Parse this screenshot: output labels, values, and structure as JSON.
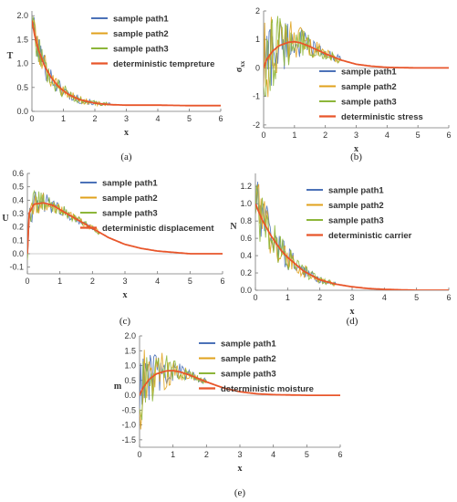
{
  "colors": {
    "path1": "#4C72B8",
    "path2": "#E0A21C",
    "path3": "#8DB63A",
    "deterministic": "#E8562B",
    "axis": "#777777",
    "zero_line": "#BBBBBB"
  },
  "chart_data": [
    {
      "type": "line",
      "panel": "(a)",
      "ylabel": "T",
      "xlabel": "x",
      "xlim": [
        0,
        6
      ],
      "ylim": [
        0,
        2.1
      ],
      "x_ticks": [
        "0",
        "1",
        "2",
        "3",
        "4",
        "5",
        "6"
      ],
      "y_ticks": [
        0.0,
        0.5,
        1.0,
        1.5,
        2.0
      ],
      "y_tick_labels": [
        "0.0",
        "0.5",
        "1.0",
        "1.5",
        "2.0"
      ],
      "deterministic": {
        "name": "deterministic tempreture",
        "x": [
          0,
          0.1,
          0.2,
          0.4,
          0.6,
          0.8,
          1.0,
          1.2,
          1.5,
          2.0,
          2.5,
          3.0,
          4.0,
          5.0,
          6.0
        ],
        "y": [
          1.9,
          1.55,
          1.3,
          0.95,
          0.72,
          0.55,
          0.43,
          0.34,
          0.25,
          0.17,
          0.14,
          0.13,
          0.13,
          0.12,
          0.12
        ]
      },
      "noise_amplitude": [
        0.35,
        0.04
      ],
      "noise_extent": 2.5,
      "series": [
        {
          "name": "sample path1"
        },
        {
          "name": "sample path2"
        },
        {
          "name": "sample path3"
        }
      ]
    },
    {
      "type": "line",
      "panel": "(b)",
      "ylabel": "σxx",
      "xlabel": "x",
      "xlim": [
        0,
        6
      ],
      "ylim": [
        -2.1,
        2.0
      ],
      "x_ticks": [
        "0",
        "1",
        "2",
        "3",
        "4",
        "5",
        "6"
      ],
      "y_ticks": [
        -2,
        -1,
        0,
        1,
        2
      ],
      "y_tick_labels": [
        "-2",
        "-1",
        "0",
        "1",
        "2"
      ],
      "deterministic": {
        "name": "deterministic stress",
        "x": [
          0,
          0.1,
          0.3,
          0.5,
          0.8,
          1.0,
          1.2,
          1.5,
          2.0,
          2.5,
          3.0,
          3.5,
          4.0,
          5.0,
          6.0
        ],
        "y": [
          0.0,
          0.3,
          0.6,
          0.78,
          0.9,
          0.92,
          0.88,
          0.75,
          0.5,
          0.28,
          0.13,
          0.06,
          0.02,
          0.0,
          0.0
        ]
      },
      "noise_amplitude": [
        1.6,
        0.15
      ],
      "noise_extent": 2.5,
      "series": [
        {
          "name": "sample path1"
        },
        {
          "name": "sample path2"
        },
        {
          "name": "sample path3"
        }
      ]
    },
    {
      "type": "line",
      "panel": "(c)",
      "ylabel": "U",
      "xlabel": "x",
      "xlim": [
        0,
        6
      ],
      "ylim": [
        -0.15,
        0.6
      ],
      "x_ticks": [
        "0",
        "1",
        "2",
        "3",
        "4",
        "5",
        "6"
      ],
      "y_ticks": [
        -0.1,
        0.0,
        0.1,
        0.2,
        0.3,
        0.4,
        0.5,
        0.6
      ],
      "y_tick_labels": [
        "-0.1",
        "0.0",
        "0.1",
        "0.2",
        "0.3",
        "0.4",
        "0.5",
        "0.6"
      ],
      "deterministic": {
        "name": "deterministic displacement",
        "x": [
          0,
          0.05,
          0.2,
          0.5,
          0.8,
          1.0,
          1.5,
          2.0,
          2.5,
          3.0,
          3.5,
          4.0,
          4.5,
          5.0,
          6.0
        ],
        "y": [
          0.0,
          0.3,
          0.37,
          0.38,
          0.36,
          0.33,
          0.26,
          0.19,
          0.12,
          0.07,
          0.04,
          0.02,
          0.01,
          0.0,
          0.0
        ]
      },
      "noise_amplitude": [
        0.12,
        0.02
      ],
      "noise_extent": 2.2,
      "series": [
        {
          "name": "sample path1"
        },
        {
          "name": "sample path2"
        },
        {
          "name": "sample path3"
        }
      ]
    },
    {
      "type": "line",
      "panel": "(d)",
      "ylabel": "N",
      "xlabel": "x",
      "xlim": [
        0,
        6
      ],
      "ylim": [
        0,
        1.35
      ],
      "x_ticks": [
        "0",
        "1",
        "2",
        "3",
        "4",
        "5",
        "6"
      ],
      "y_ticks": [
        0.0,
        0.2,
        0.4,
        0.6,
        0.8,
        1.0,
        1.2
      ],
      "y_tick_labels": [
        "0.0",
        "0.2",
        "0.4",
        "0.6",
        "0.8",
        "1.0",
        "1.2"
      ],
      "deterministic": {
        "name": "deterministic carrier",
        "x": [
          0,
          0.2,
          0.5,
          0.8,
          1.0,
          1.5,
          2.0,
          2.5,
          3.0,
          3.5,
          4.0,
          4.5,
          5.0,
          6.0
        ],
        "y": [
          1.0,
          0.82,
          0.62,
          0.46,
          0.38,
          0.22,
          0.12,
          0.07,
          0.04,
          0.02,
          0.01,
          0.005,
          0.0,
          0.0
        ]
      },
      "noise_amplitude": [
        0.35,
        0.03
      ],
      "noise_extent": 2.5,
      "series": [
        {
          "name": "sample path1"
        },
        {
          "name": "sample path2"
        },
        {
          "name": "sample path3"
        }
      ]
    },
    {
      "type": "line",
      "panel": "(e)",
      "ylabel": "m",
      "xlabel": "x",
      "xlim": [
        0,
        6
      ],
      "ylim": [
        -1.75,
        2.0
      ],
      "x_ticks": [
        "0",
        "1",
        "2",
        "3",
        "4",
        "5",
        "6"
      ],
      "y_ticks": [
        -1.5,
        -1.0,
        -0.5,
        0.0,
        0.5,
        1.0,
        1.5,
        2.0
      ],
      "y_tick_labels": [
        "-1.5",
        "-1.0",
        "-0.5",
        "0.0",
        "0.5",
        "1.0",
        "1.5",
        "2.0"
      ],
      "deterministic": {
        "name": "deterministic moisture",
        "x": [
          0,
          0.1,
          0.3,
          0.5,
          0.8,
          1.0,
          1.2,
          1.5,
          2.0,
          2.5,
          3.0,
          3.5,
          4.0,
          5.0,
          6.0
        ],
        "y": [
          0.0,
          0.25,
          0.55,
          0.72,
          0.82,
          0.83,
          0.79,
          0.68,
          0.45,
          0.25,
          0.12,
          0.05,
          0.02,
          0.0,
          0.0
        ]
      },
      "noise_amplitude": [
        1.4,
        0.1
      ],
      "noise_extent": 2.0,
      "series": [
        {
          "name": "sample path1"
        },
        {
          "name": "sample path2"
        },
        {
          "name": "sample path3"
        }
      ]
    }
  ]
}
